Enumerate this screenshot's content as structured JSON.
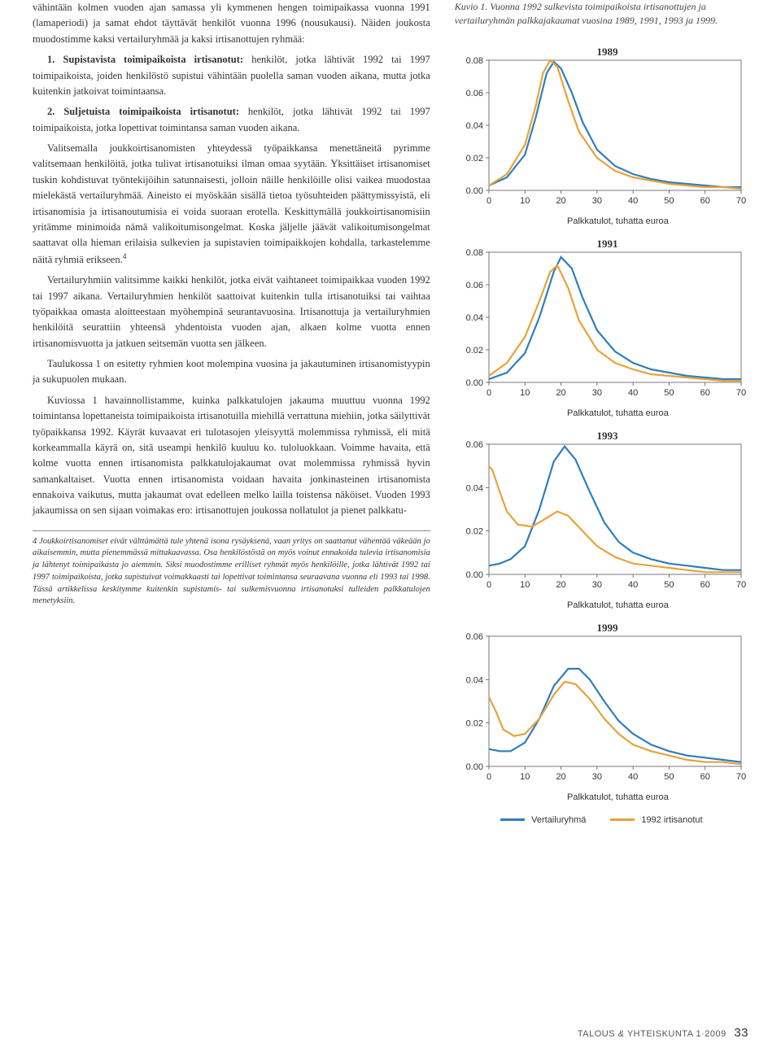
{
  "left": {
    "p1": "vähintään kolmen vuoden ajan samassa yli kymmenen hengen toimipaikassa vuonna 1991 (lamaperiodi) ja samat ehdot täyttävät henkilöt vuonna 1996 (nousukausi). Näiden joukosta muodostimme kaksi vertailuryhmää ja kaksi irtisanottujen ryhmää:",
    "p2a": "1. Supistavista toimipaikoista irtisanotut:",
    "p2b": " henkilöt, jotka lähtivät 1992 tai 1997 toimipaikoista, joiden henkilöstö supistui vähintään puolella saman vuoden aikana, mutta jotka kuitenkin jatkoivat toimintaansa.",
    "p3a": "2. Suljetuista toimipaikoista irtisanotut:",
    "p3b": " henkilöt, jotka lähtivät 1992 tai 1997 toimipaikoista, jotka lopettivat toimintansa saman vuoden aikana.",
    "p4": "Valitsemalla joukkoirtisanomisten yhteydessä työpaikkansa menettäneitä pyrimme valitsemaan henkilöitä, jotka tulivat irtisanotuiksi ilman omaa syytään. Yksittäiset irtisanomiset tuskin kohdistuvat työntekijöihin satunnaisesti, jolloin näille henkilöille olisi vaikea muodostaa mielekästä vertailuryhmää. Aineisto ei myöskään sisällä tietoa työsuhteiden päättymissyistä, eli irtisanomisia ja irtisanoutumisia ei voida suoraan erotella. Keskittymällä joukkoirtisanomisiin yritämme minimoida nämä valikoitumisongelmat. Koska jäljelle jäävät valikoitumisongelmat saattavat olla hieman erilaisia sulkevien ja supistavien toimipaikkojen kohdalla, tarkastelemme näitä ryhmiä erikseen.",
    "p4_sup": "4",
    "p5": "Vertailuryhmiin valitsimme kaikki henkilöt, jotka eivät vaihtaneet toimipaikkaa vuoden 1992 tai 1997 aikana. Vertailuryhmien henkilöt saattoivat kuitenkin tulla irtisanotuiksi tai vaihtaa työpaikkaa omasta aloitteestaan myöhempinä seurantavuosina. Irtisanottuja ja vertailuryhmien henkilöitä seurattiin yhteensä yhdentoista vuoden ajan, alkaen kolme vuotta ennen irtisanomisvuotta ja jatkuen seitsemän vuotta sen jälkeen.",
    "p6": "Taulukossa 1 on esitetty ryhmien koot molempina vuosina ja jakautuminen irtisanomistyypin ja sukupuolen mukaan.",
    "p7": "Kuviossa 1 havainnollistamme, kuinka palkkatulojen jakauma muuttuu vuonna 1992 toimintansa lopettaneista toimipaikoista irtisanotuilla miehillä verrattuna miehiin, jotka säilyttivät työpaikkansa 1992. Käyrät kuvaavat eri tulotasojen yleisyyttä molemmissa ryhmissä, eli mitä korkeammalla käyrä on, sitä useampi henkilö kuuluu ko. tuloluokkaan. Voimme havaita, että kolme vuotta ennen irtisanomista palkkatulojakaumat ovat molemmissa ryhmissä hyvin samankaltaiset. Vuotta ennen irtisanomista voidaan havaita jonkinasteinen irtisanomista ennakoiva vaikutus, mutta jakaumat ovat edelleen melko lailla toistensa näköiset. Vuoden 1993 jakaumissa on sen sijaan voimakas ero: irtisanottujen joukossa nollatulot ja pienet palkkatu-",
    "footnote": "4 Joukkoirtisanomiset eivät välttämättä tule yhtenä isona rysäyksenä, vaan yritys on saattanut vähentää väkeään jo aikaisemmin, mutta pienemmässä mittakaavassa. Osa henkilöstöstä on myös voinut ennakoida tulevia irtisanomisia ja lähtenyt toimipaikasta jo aiemmin. Siksi muodostimme erilliset ryhmät myös henkilöille, jotka lähtivät 1992 tai 1997 toimipaikoista, jotka supistuivat voimakkaasti tai lopettivat toimintansa seuraavana vuonna eli 1993 tai 1998. Tässä artikkelissa keskitymme kuitenkin supistamis- tai sulkemisvuonna irtisanotuksi tulleiden palkkatulojen menetyksiin."
  },
  "right": {
    "caption": "Kuvio 1. Vuonna 1992 sulkevista toimipaikoista irtisanottujen ja vertailuryhmän palkkajakaumat vuosina 1989, 1991, 1993 ja 1999.",
    "x_axis_label": "Palkkatulot, tuhatta euroa",
    "legend_a": "Vertailuryhmä",
    "legend_b": "1992 irtisanotut",
    "color_blue": "#2e7ebf",
    "color_orange": "#e8a23a",
    "grid_color": "#555555",
    "charts": [
      {
        "title": "1989",
        "ylim": [
          0,
          0.08
        ],
        "ytick_step": 0.02,
        "xlim": [
          0,
          70
        ],
        "xtick_step": 10,
        "blue": [
          [
            0,
            0.003
          ],
          [
            5,
            0.008
          ],
          [
            10,
            0.022
          ],
          [
            13,
            0.045
          ],
          [
            16,
            0.072
          ],
          [
            18,
            0.079
          ],
          [
            20,
            0.075
          ],
          [
            23,
            0.06
          ],
          [
            26,
            0.042
          ],
          [
            30,
            0.025
          ],
          [
            35,
            0.015
          ],
          [
            40,
            0.01
          ],
          [
            45,
            0.007
          ],
          [
            50,
            0.005
          ],
          [
            55,
            0.004
          ],
          [
            60,
            0.003
          ],
          [
            65,
            0.002
          ],
          [
            70,
            0.002
          ]
        ],
        "orange": [
          [
            0,
            0.003
          ],
          [
            5,
            0.01
          ],
          [
            10,
            0.028
          ],
          [
            13,
            0.052
          ],
          [
            15,
            0.072
          ],
          [
            17,
            0.08
          ],
          [
            19,
            0.076
          ],
          [
            22,
            0.055
          ],
          [
            25,
            0.036
          ],
          [
            30,
            0.02
          ],
          [
            35,
            0.012
          ],
          [
            40,
            0.008
          ],
          [
            45,
            0.006
          ],
          [
            50,
            0.004
          ],
          [
            55,
            0.003
          ],
          [
            60,
            0.002
          ],
          [
            65,
            0.002
          ],
          [
            70,
            0.001
          ]
        ]
      },
      {
        "title": "1991",
        "ylim": [
          0,
          0.08
        ],
        "ytick_step": 0.02,
        "xlim": [
          0,
          70
        ],
        "xtick_step": 10,
        "blue": [
          [
            0,
            0.002
          ],
          [
            5,
            0.006
          ],
          [
            10,
            0.018
          ],
          [
            14,
            0.04
          ],
          [
            18,
            0.068
          ],
          [
            20,
            0.077
          ],
          [
            23,
            0.07
          ],
          [
            26,
            0.052
          ],
          [
            30,
            0.032
          ],
          [
            35,
            0.019
          ],
          [
            40,
            0.012
          ],
          [
            45,
            0.008
          ],
          [
            50,
            0.006
          ],
          [
            55,
            0.004
          ],
          [
            60,
            0.003
          ],
          [
            65,
            0.002
          ],
          [
            70,
            0.002
          ]
        ],
        "orange": [
          [
            0,
            0.004
          ],
          [
            5,
            0.012
          ],
          [
            10,
            0.028
          ],
          [
            14,
            0.05
          ],
          [
            17,
            0.068
          ],
          [
            19,
            0.072
          ],
          [
            22,
            0.058
          ],
          [
            25,
            0.038
          ],
          [
            30,
            0.02
          ],
          [
            35,
            0.012
          ],
          [
            40,
            0.008
          ],
          [
            45,
            0.005
          ],
          [
            50,
            0.004
          ],
          [
            55,
            0.003
          ],
          [
            60,
            0.002
          ],
          [
            65,
            0.001
          ],
          [
            70,
            0.001
          ]
        ]
      },
      {
        "title": "1993",
        "ylim": [
          0,
          0.06
        ],
        "ytick_step": 0.02,
        "xlim": [
          0,
          70
        ],
        "xtick_step": 10,
        "blue": [
          [
            0,
            0.004
          ],
          [
            3,
            0.005
          ],
          [
            6,
            0.007
          ],
          [
            10,
            0.013
          ],
          [
            14,
            0.03
          ],
          [
            18,
            0.052
          ],
          [
            21,
            0.059
          ],
          [
            24,
            0.053
          ],
          [
            28,
            0.038
          ],
          [
            32,
            0.024
          ],
          [
            36,
            0.015
          ],
          [
            40,
            0.01
          ],
          [
            45,
            0.007
          ],
          [
            50,
            0.005
          ],
          [
            55,
            0.004
          ],
          [
            60,
            0.003
          ],
          [
            65,
            0.002
          ],
          [
            70,
            0.002
          ]
        ],
        "orange": [
          [
            0,
            0.05
          ],
          [
            1,
            0.048
          ],
          [
            3,
            0.038
          ],
          [
            5,
            0.029
          ],
          [
            8,
            0.023
          ],
          [
            12,
            0.022
          ],
          [
            16,
            0.026
          ],
          [
            19,
            0.029
          ],
          [
            22,
            0.027
          ],
          [
            26,
            0.02
          ],
          [
            30,
            0.013
          ],
          [
            35,
            0.008
          ],
          [
            40,
            0.005
          ],
          [
            45,
            0.004
          ],
          [
            50,
            0.003
          ],
          [
            55,
            0.002
          ],
          [
            60,
            0.001
          ],
          [
            65,
            0.001
          ],
          [
            70,
            0.001
          ]
        ]
      },
      {
        "title": "1999",
        "ylim": [
          0,
          0.06
        ],
        "ytick_step": 0.02,
        "xlim": [
          0,
          70
        ],
        "xtick_step": 10,
        "blue": [
          [
            0,
            0.008
          ],
          [
            3,
            0.007
          ],
          [
            6,
            0.007
          ],
          [
            10,
            0.011
          ],
          [
            14,
            0.022
          ],
          [
            18,
            0.037
          ],
          [
            22,
            0.045
          ],
          [
            25,
            0.045
          ],
          [
            28,
            0.04
          ],
          [
            32,
            0.03
          ],
          [
            36,
            0.021
          ],
          [
            40,
            0.015
          ],
          [
            45,
            0.01
          ],
          [
            50,
            0.007
          ],
          [
            55,
            0.005
          ],
          [
            60,
            0.004
          ],
          [
            65,
            0.003
          ],
          [
            70,
            0.002
          ]
        ],
        "orange": [
          [
            0,
            0.032
          ],
          [
            2,
            0.025
          ],
          [
            4,
            0.017
          ],
          [
            7,
            0.014
          ],
          [
            10,
            0.015
          ],
          [
            14,
            0.022
          ],
          [
            18,
            0.033
          ],
          [
            21,
            0.039
          ],
          [
            24,
            0.038
          ],
          [
            28,
            0.031
          ],
          [
            32,
            0.022
          ],
          [
            36,
            0.015
          ],
          [
            40,
            0.01
          ],
          [
            45,
            0.007
          ],
          [
            50,
            0.005
          ],
          [
            55,
            0.003
          ],
          [
            60,
            0.002
          ],
          [
            65,
            0.002
          ],
          [
            70,
            0.001
          ]
        ]
      }
    ]
  },
  "footer": {
    "journal": "TALOUS ",
    "amp": "&",
    "journal2": " YHTEISKUNTA 1·2009",
    "page": "33"
  }
}
